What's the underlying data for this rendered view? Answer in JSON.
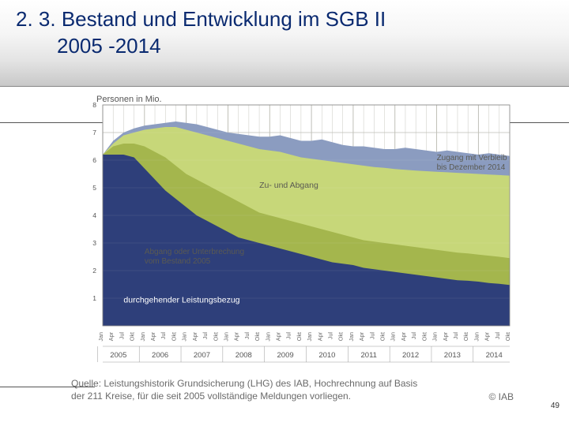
{
  "header": {
    "title_line1": "2. 3. Bestand und Entwicklung im SGB II",
    "title_line2": "2005 -2014"
  },
  "page_number": "49",
  "credit": "© IAB",
  "source_line1": "Quelle: Leistungshistorik Grundsicherung (LHG) des IAB, Hochrechnung auf Basis",
  "source_line2": "der 211 Kreise, für die seit 2005 vollständige Meldungen vorliegen.",
  "chart": {
    "type": "stacked-area",
    "y_axis_label": "Personen in Mio.",
    "ylim": [
      0,
      8
    ],
    "ytick_step": 1,
    "background_color": "#ffffff",
    "grid_color": "#b9b9b0",
    "axis_label_fontsize": 11,
    "tick_fontsize": 8.5,
    "years": [
      2005,
      2006,
      2007,
      2008,
      2009,
      2010,
      2011,
      2012,
      2013,
      2014
    ],
    "quarter_labels": [
      "Jan",
      "Apr",
      "Jul",
      "Okt"
    ],
    "layers": [
      {
        "id": "durchgehend",
        "label": "durchgehender Leistungsbezug",
        "label_text_color": "#ffffff",
        "label_bg": "none",
        "fill": "#2e3f7a",
        "values": [
          6.2,
          6.2,
          6.2,
          6.1,
          5.7,
          5.3,
          4.9,
          4.6,
          4.3,
          4.0,
          3.8,
          3.6,
          3.4,
          3.2,
          3.1,
          3.0,
          2.9,
          2.8,
          2.7,
          2.6,
          2.5,
          2.4,
          2.3,
          2.25,
          2.2,
          2.1,
          2.05,
          2.0,
          1.95,
          1.9,
          1.85,
          1.8,
          1.75,
          1.7,
          1.65,
          1.63,
          1.6,
          1.55,
          1.52,
          1.48
        ]
      },
      {
        "id": "abgang",
        "label": "Abgang oder Unterbrechung",
        "label2": "vom Bestand 2005",
        "label_text_color": "#6a6a6a",
        "fill": "#a4b64d",
        "cum_values": [
          6.2,
          6.5,
          6.6,
          6.6,
          6.5,
          6.3,
          6.1,
          5.8,
          5.5,
          5.3,
          5.1,
          4.9,
          4.7,
          4.5,
          4.3,
          4.1,
          4.0,
          3.9,
          3.8,
          3.7,
          3.6,
          3.5,
          3.4,
          3.3,
          3.2,
          3.1,
          3.05,
          3.0,
          2.95,
          2.9,
          2.85,
          2.8,
          2.75,
          2.7,
          2.65,
          2.62,
          2.58,
          2.54,
          2.5,
          2.45
        ]
      },
      {
        "id": "zu_abgang",
        "label": "Zu- und Abgang",
        "label_text_color": "#6a6a6a",
        "fill": "#c7d779",
        "cum_values": [
          6.2,
          6.6,
          6.9,
          7.0,
          7.1,
          7.15,
          7.2,
          7.2,
          7.1,
          7.0,
          6.9,
          6.8,
          6.7,
          6.6,
          6.5,
          6.4,
          6.35,
          6.3,
          6.2,
          6.1,
          6.05,
          6.0,
          5.95,
          5.9,
          5.85,
          5.8,
          5.75,
          5.72,
          5.68,
          5.65,
          5.62,
          5.6,
          5.58,
          5.56,
          5.54,
          5.52,
          5.5,
          5.48,
          5.46,
          5.44
        ]
      },
      {
        "id": "zugang_verbleib",
        "label": "Zugang mit Verbleib",
        "label2": "bis Dezember 2014",
        "label_text_color": "#6a6a6a",
        "fill": "#8b9cc0",
        "cum_values": [
          6.2,
          6.7,
          7.0,
          7.15,
          7.25,
          7.3,
          7.35,
          7.4,
          7.35,
          7.3,
          7.2,
          7.1,
          7.0,
          6.95,
          6.9,
          6.85,
          6.85,
          6.9,
          6.8,
          6.7,
          6.7,
          6.75,
          6.65,
          6.55,
          6.5,
          6.5,
          6.45,
          6.4,
          6.4,
          6.45,
          6.4,
          6.35,
          6.3,
          6.35,
          6.3,
          6.25,
          6.2,
          6.25,
          6.2,
          6.15
        ]
      }
    ],
    "annotations": [
      {
        "id": "zu_abgang_ann",
        "text": "Zu- und Abgang",
        "x_index": 15,
        "y": 5.0
      },
      {
        "id": "zugang_ann",
        "text1": "Zugang mit Verbleib",
        "text2": "bis Dezember 2014",
        "x_index": 32,
        "y": 6.0
      },
      {
        "id": "abgang_ann",
        "text1": "Abgang oder Unterbrechung",
        "text2": "vom Bestand 2005",
        "x_index": 4,
        "y": 2.6
      },
      {
        "id": "durch_ann",
        "text": "durchgehender Leistungsbezug",
        "x_index": 2,
        "y": 0.85
      }
    ]
  }
}
